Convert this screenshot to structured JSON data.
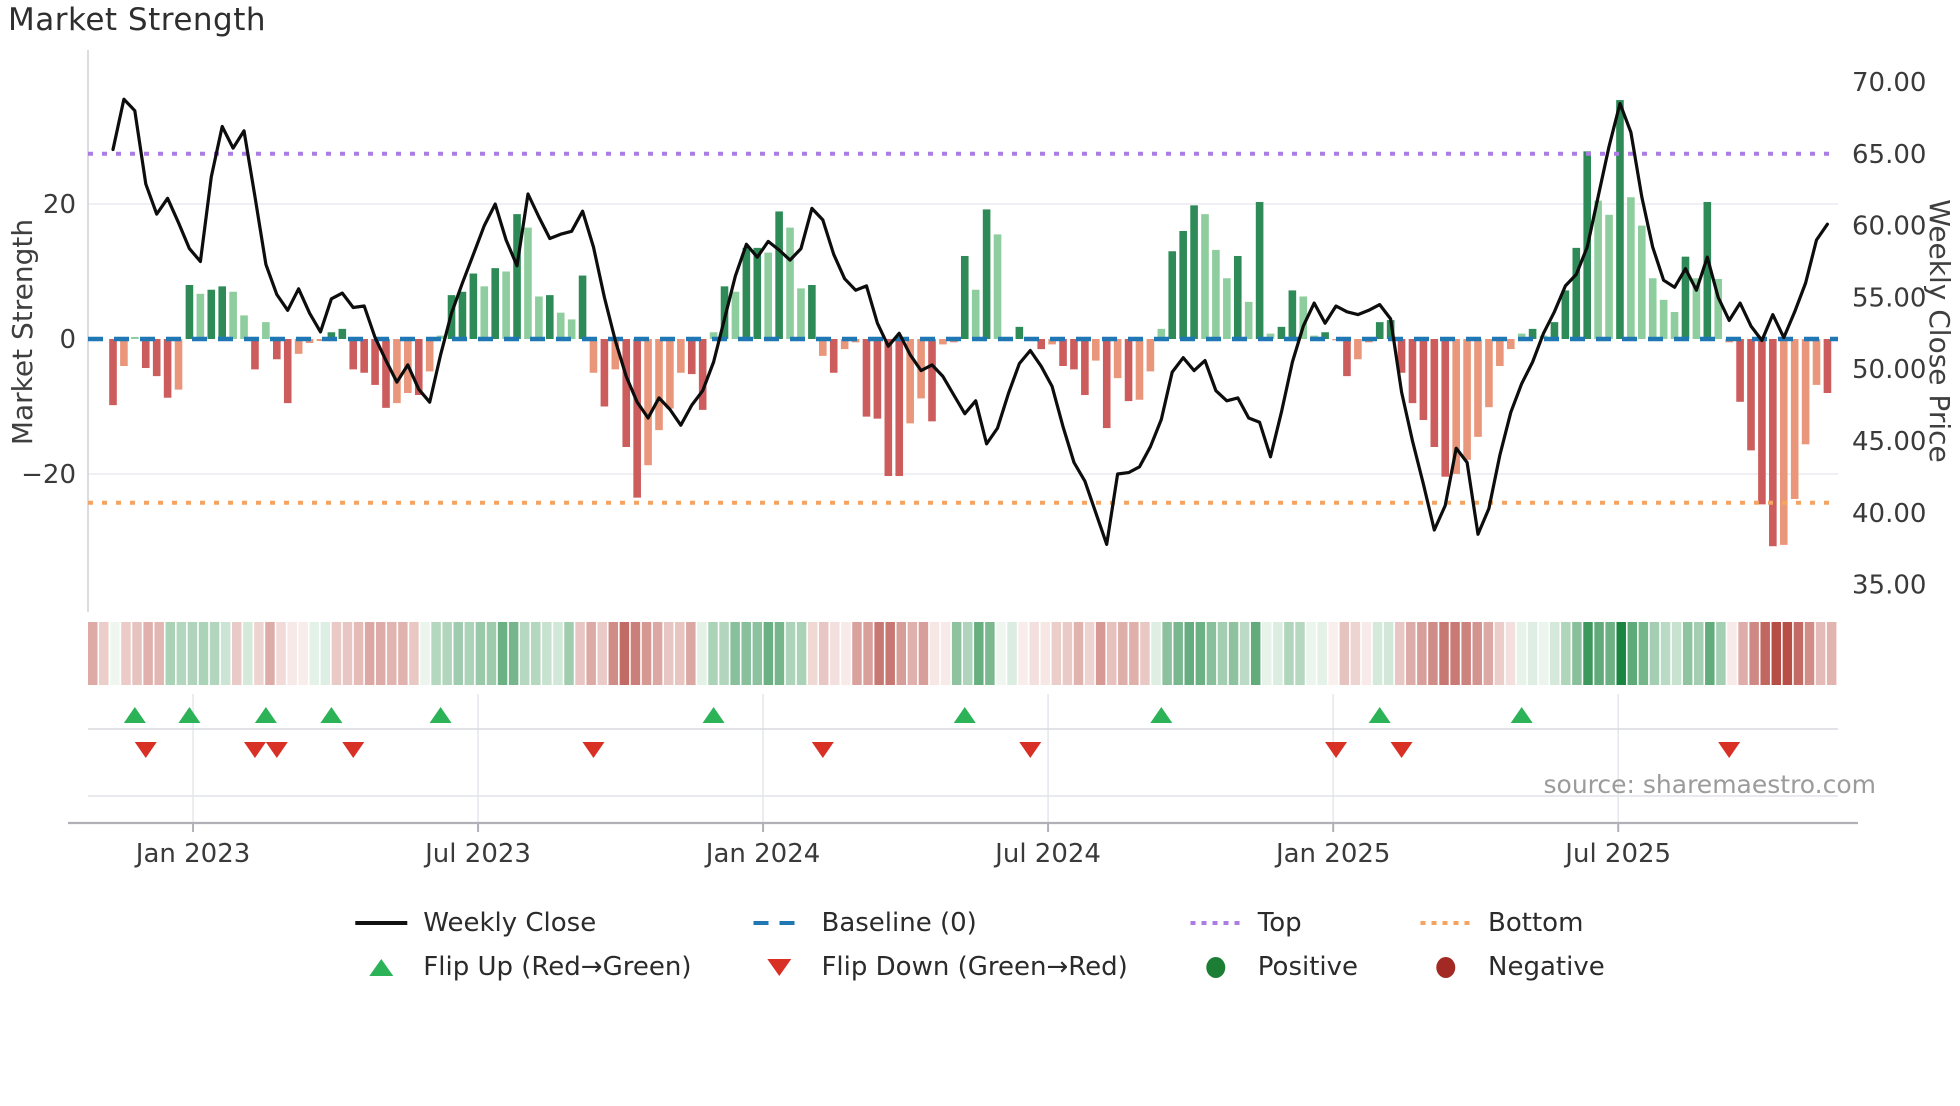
{
  "title": "Market Strength",
  "source": "source: sharemaestro.com",
  "axes": {
    "left_label": "Market Strength",
    "right_label": "Weekly Close Price",
    "left_ticks": [
      {
        "label": "20",
        "value": 20
      },
      {
        "label": "0",
        "value": 0
      },
      {
        "label": "−20",
        "value": -20
      }
    ],
    "right_ticks": [
      {
        "label": "70.00",
        "value": 70
      },
      {
        "label": "65.00",
        "value": 65
      },
      {
        "label": "60.00",
        "value": 60
      },
      {
        "label": "55.00",
        "value": 55
      },
      {
        "label": "50.00",
        "value": 50
      },
      {
        "label": "45.00",
        "value": 45
      },
      {
        "label": "40.00",
        "value": 40
      },
      {
        "label": "35.00",
        "value": 35
      }
    ],
    "x_ticks": [
      {
        "label": "Jan 2023",
        "week": 7.33
      },
      {
        "label": "Jul 2023",
        "week": 33.43
      },
      {
        "label": "Jan 2024",
        "week": 59.53
      },
      {
        "label": "Jul 2024",
        "week": 85.63
      },
      {
        "label": "Jan 2025",
        "week": 111.74
      },
      {
        "label": "Jul 2025",
        "week": 137.84
      }
    ]
  },
  "legend": {
    "items": [
      {
        "label": "Weekly Close",
        "swatch": "line"
      },
      {
        "label": "Baseline (0)",
        "swatch": "dash-blue"
      },
      {
        "label": "Top",
        "swatch": "dot-purple"
      },
      {
        "label": "Bottom",
        "swatch": "dot-orange"
      },
      {
        "label": "Flip Up (Red→Green)",
        "swatch": "triangle-up"
      },
      {
        "label": "Flip Down (Green→Red)",
        "swatch": "triangle-down"
      },
      {
        "label": "Positive",
        "swatch": "dot-green"
      },
      {
        "label": "Negative",
        "swatch": "dot-darkred"
      }
    ]
  },
  "colors": {
    "bar_pos_dark": "#2e8b57",
    "bar_pos_light": "#8ecd9d",
    "bar_neg_dark": "#cd5c5c",
    "bar_neg_light": "#e9967a",
    "price_line": "#0d0d0d",
    "baseline": "#1f77b4",
    "top_line": "#ab7de4",
    "bottom_line": "#f4a460",
    "flip_up": "#2cb358",
    "flip_down": "#d93025",
    "heat_pos": "#1a8540",
    "heat_neg": "#af3c34",
    "grid": "#ececf1",
    "axis_line": "#b0b0b6",
    "tick_text": "#3a3a3a",
    "label_text": "#3f3f3f"
  },
  "chart_data": {
    "type": "bar+line",
    "title": "Market Strength",
    "ylabel_left": "Market Strength",
    "ylabel_right": "Weekly Close Price",
    "n_weeks": 158,
    "baseline": 0,
    "top_level_price": 65.0,
    "bottom_level_price": 40.7,
    "ylim_left": [
      -38,
      40
    ],
    "ylim_right": [
      35,
      70
    ],
    "strength": [
      -9.8,
      -4,
      0.3,
      -4.3,
      -5.5,
      -8.7,
      -7.5,
      8,
      6.7,
      7.3,
      7.8,
      7,
      3.5,
      -4.5,
      2.5,
      -3,
      -9.5,
      -2.2,
      -0.6,
      -0.3,
      1,
      1.5,
      -4.5,
      -5,
      -6.8,
      -10.2,
      -9.5,
      -8,
      -8.3,
      -4.8,
      0.5,
      6.5,
      7,
      9.7,
      7.8,
      10.5,
      10,
      18.5,
      16.5,
      6.3,
      6.5,
      3.9,
      2.9,
      9.4,
      -5,
      -10,
      -4.5,
      -16,
      -23.5,
      -18.7,
      -13.5,
      -10.3,
      -5,
      -5.2,
      -10.5,
      1,
      7.8,
      7,
      13.5,
      13.5,
      12.8,
      18.9,
      16.5,
      7.5,
      8,
      -2.5,
      -5,
      -1.5,
      -0.5,
      -11.5,
      -11.8,
      -20.3,
      -20.3,
      -12.5,
      -8.8,
      -12.2,
      -0.8,
      -0.5,
      12.3,
      7.3,
      19.2,
      15.5,
      0.3,
      1.8,
      -0.3,
      -1.5,
      -0.8,
      -4,
      -4.5,
      -8.3,
      -3.2,
      -13.2,
      -5.8,
      -9.2,
      -9,
      -4.8,
      1.5,
      13,
      16,
      19.8,
      18.5,
      13.2,
      9,
      12.3,
      5.5,
      20.3,
      0.8,
      1.8,
      7.2,
      6.3,
      0.5,
      1,
      -0.2,
      -5.5,
      -3,
      -0.5,
      2.5,
      2.8,
      -5,
      -9.5,
      -12,
      -16,
      -20.4,
      -20,
      -17.9,
      -14.5,
      -10.1,
      -4,
      -1.5,
      0.8,
      1.5,
      0.5,
      2.5,
      7.2,
      13.5,
      27.8,
      20.5,
      18.4,
      35.4,
      21,
      16.8,
      9,
      5.8,
      4,
      12.2,
      9,
      20.3,
      8.9,
      -0.5,
      -9.3,
      -16.5,
      -24.5,
      -30.7,
      -30.5,
      -23.7,
      -15.6,
      -6.8,
      -8
    ],
    "weekly_close": [
      65.3,
      68.8,
      68,
      62.9,
      60.8,
      61.9,
      60.2,
      58.4,
      57.5,
      63.4,
      66.9,
      65.4,
      66.6,
      62,
      57.3,
      55.2,
      54.1,
      55.6,
      53.9,
      52.6,
      54.9,
      55.3,
      54.3,
      54.4,
      52.2,
      50.6,
      49.1,
      50.3,
      48.6,
      47.7,
      51,
      53.9,
      56,
      58,
      60,
      61.5,
      59,
      57.2,
      62.2,
      60.6,
      59.1,
      59.4,
      59.6,
      61,
      58.5,
      55,
      52,
      49.5,
      47.7,
      46.6,
      48,
      47.2,
      46.1,
      47.5,
      48.5,
      50.5,
      53.5,
      56.5,
      58.7,
      57.8,
      58.9,
      58.3,
      57.6,
      58.4,
      61.2,
      60.4,
      58,
      56.3,
      55.5,
      55.8,
      53.2,
      51.6,
      52.5,
      51,
      49.9,
      50.3,
      49.5,
      48.2,
      46.9,
      47.8,
      44.8,
      45.9,
      48.3,
      50.4,
      51.3,
      50.2,
      48.8,
      46,
      43.5,
      42.2,
      40,
      37.8,
      42.7,
      42.8,
      43.2,
      44.6,
      46.5,
      49.8,
      50.8,
      49.9,
      50.6,
      48.5,
      47.8,
      48,
      46.6,
      46.3,
      43.9,
      47,
      50.5,
      53,
      54.6,
      53.2,
      54.4,
      54,
      53.8,
      54.1,
      54.5,
      53.5,
      48.4,
      45,
      42,
      38.8,
      40.5,
      44.5,
      43.5,
      38.5,
      40.3,
      44,
      47,
      49,
      50.5,
      52.5,
      54,
      55.8,
      56.6,
      58.5,
      62,
      65.5,
      68.5,
      66.5,
      62,
      58.5,
      56.2,
      55.7,
      57,
      55.5,
      57.8,
      55,
      53.4,
      54.6,
      53,
      52,
      53.8,
      52.2,
      54,
      56,
      59,
      60.1
    ],
    "flip_up_weeks": [
      2,
      7,
      14,
      20,
      30,
      55,
      78,
      96,
      116,
      129
    ],
    "flip_down_weeks": [
      3,
      13,
      15,
      22,
      44,
      65,
      84,
      112,
      118,
      148
    ],
    "heatmap": "same values as strength, diverging red-green intensity",
    "legend_position": "bottom center, 4 columns, 2 rows",
    "grid": "horizontal at +20/-20 only; vertical gridlines in marker panel at month ticks"
  }
}
